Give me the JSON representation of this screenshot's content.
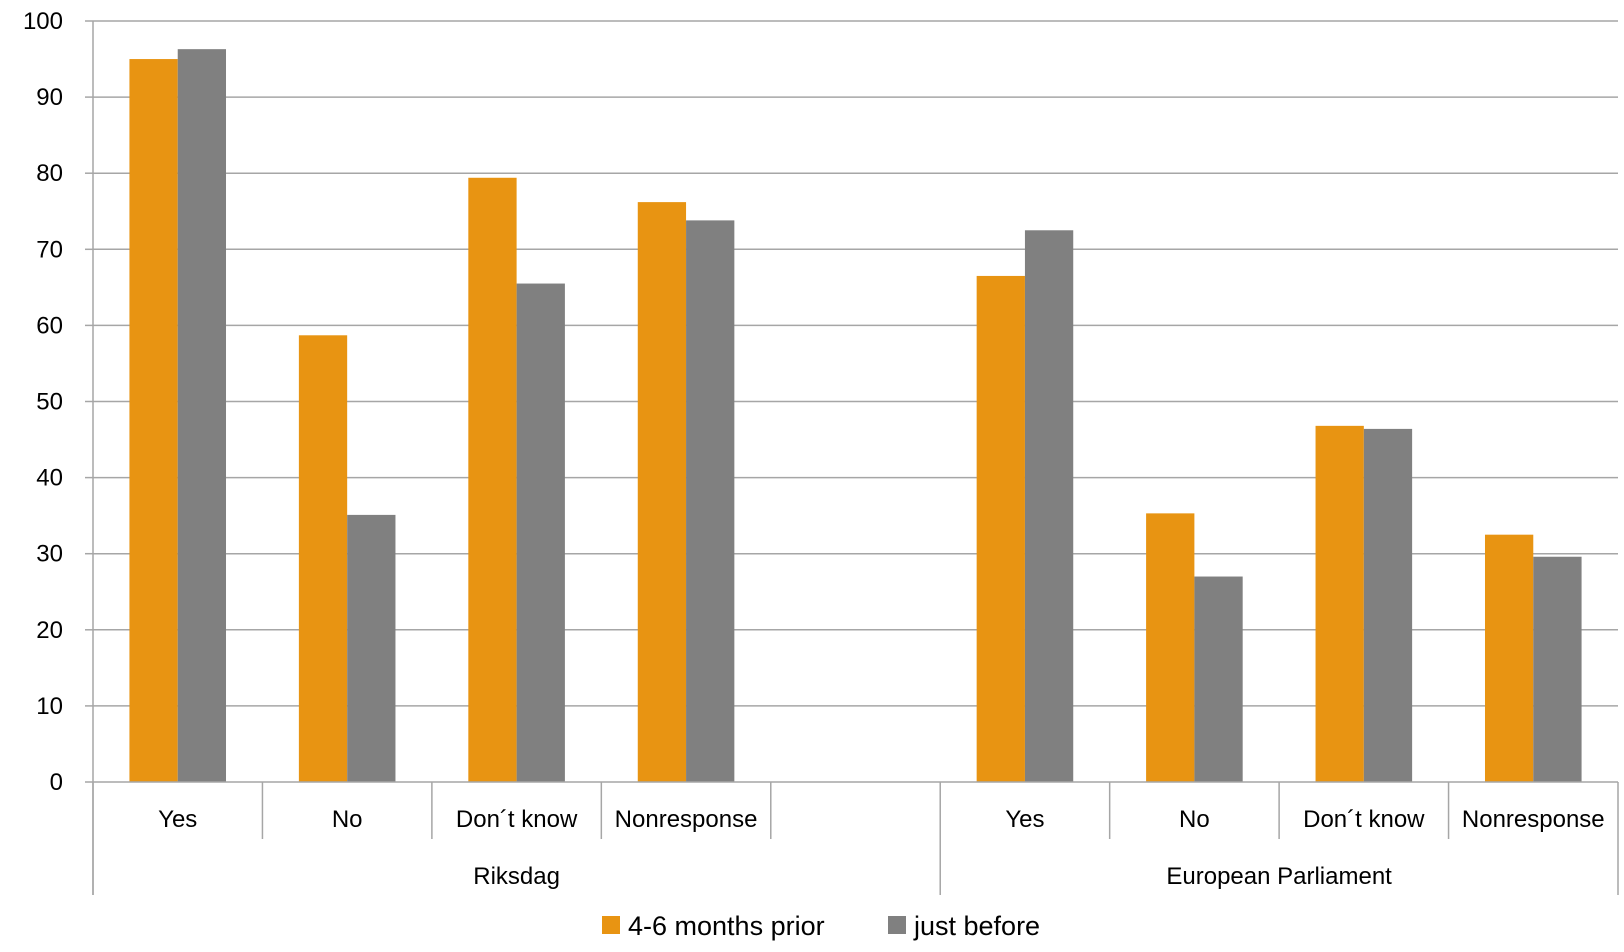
{
  "chart_data": {
    "type": "bar",
    "groups": [
      {
        "name": "Riksdag",
        "categories": [
          "Yes",
          "No",
          "Don´t know",
          "Nonresponse",
          ""
        ]
      },
      {
        "name": "European Parliament",
        "categories": [
          "Yes",
          "No",
          "Don´t know",
          "Nonresponse"
        ]
      }
    ],
    "categories": [
      "Yes",
      "No",
      "Don´t know",
      "Nonresponse",
      "",
      "Yes",
      "No",
      "Don´t know",
      "Nonresponse"
    ],
    "series": [
      {
        "name": "4-6 months prior",
        "color": "#E89412",
        "values": [
          95,
          58.7,
          79.4,
          76.2,
          null,
          66.5,
          35.3,
          46.8,
          32.5
        ]
      },
      {
        "name": "just before",
        "color": "#808080",
        "values": [
          96.3,
          35.1,
          65.5,
          73.8,
          null,
          72.5,
          27,
          46.4,
          29.6
        ]
      }
    ],
    "ylim": [
      0,
      100
    ],
    "yticks": [
      "0",
      "10",
      "20",
      "30",
      "40",
      "50",
      "60",
      "70",
      "80",
      "90",
      "100"
    ],
    "grid": true,
    "legend_position": "bottom",
    "title": "",
    "xlabel": "",
    "ylabel": ""
  }
}
